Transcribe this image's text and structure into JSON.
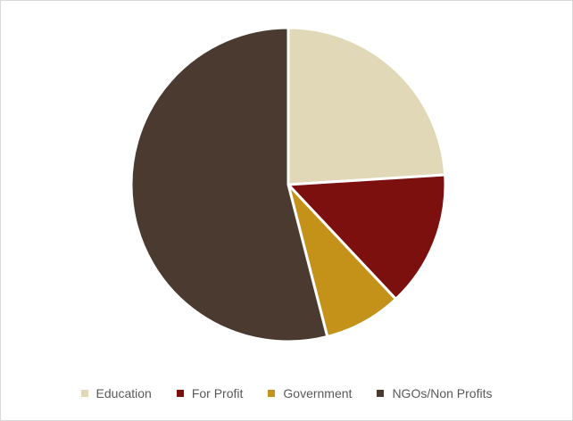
{
  "chart_data": {
    "type": "pie",
    "title": "",
    "start_angle_deg": 0,
    "direction": "clockwise",
    "slices": [
      {
        "label": "Education",
        "value": 24,
        "color": "#E0D8B6"
      },
      {
        "label": "For Profit",
        "value": 14,
        "color": "#7B100E"
      },
      {
        "label": "Government",
        "value": 8,
        "color": "#C49219"
      },
      {
        "label": "NGOs/Non Profits",
        "value": 54,
        "color": "#4A3A2F"
      }
    ],
    "legend_position": "bottom",
    "separator_color": "#ffffff"
  }
}
